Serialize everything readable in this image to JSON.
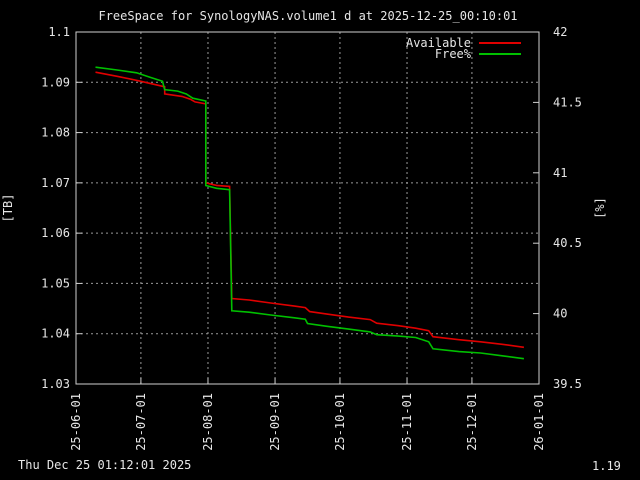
{
  "chart_data": {
    "type": "line",
    "title": "FreeSpace for SynologyNAS.volume1 d at 2025-12-25_00:10:01",
    "ylabel": "[TB]",
    "y2label": "[%]",
    "ylim": [
      1.03,
      1.1
    ],
    "y2lim": [
      39.5,
      42
    ],
    "yticks": [
      "1.03",
      "1.04",
      "1.05",
      "1.06",
      "1.07",
      "1.08",
      "1.09",
      "1.1"
    ],
    "y2ticks": [
      "39.5",
      "40",
      "40.5",
      "41",
      "41.5",
      "42"
    ],
    "xlim": [
      "2025-06-01",
      "2026-01-01"
    ],
    "xticks": [
      "25-06-01",
      "25-07-01",
      "25-08-01",
      "25-09-01",
      "25-10-01",
      "25-11-01",
      "25-12-01",
      "26-01-01"
    ],
    "grid": true,
    "legend_position": "top-right",
    "series": [
      {
        "name": "Available",
        "axis": "y",
        "color": "#e00000",
        "points": [
          [
            "2025-06-10",
            1.092
          ],
          [
            "2025-06-20",
            1.0912
          ],
          [
            "2025-06-30",
            1.0903
          ],
          [
            "2025-07-07",
            1.0896
          ],
          [
            "2025-07-12",
            1.0891
          ],
          [
            "2025-07-12",
            1.0877
          ],
          [
            "2025-07-20",
            1.0872
          ],
          [
            "2025-07-24",
            1.0866
          ],
          [
            "2025-07-26",
            1.0861
          ],
          [
            "2025-07-31",
            1.0857
          ],
          [
            "2025-07-31",
            1.07
          ],
          [
            "2025-08-05",
            1.0695
          ],
          [
            "2025-08-11",
            1.0693
          ],
          [
            "2025-08-12",
            1.047
          ],
          [
            "2025-08-20",
            1.0467
          ],
          [
            "2025-08-30",
            1.0461
          ],
          [
            "2025-09-10",
            1.0455
          ],
          [
            "2025-09-15",
            1.0452
          ],
          [
            "2025-09-17",
            1.0444
          ],
          [
            "2025-09-25",
            1.0439
          ],
          [
            "2025-10-05",
            1.0433
          ],
          [
            "2025-10-15",
            1.0428
          ],
          [
            "2025-10-18",
            1.0421
          ],
          [
            "2025-10-28",
            1.0416
          ],
          [
            "2025-11-05",
            1.0411
          ],
          [
            "2025-11-11",
            1.0406
          ],
          [
            "2025-11-13",
            1.0394
          ],
          [
            "2025-11-25",
            1.0388
          ],
          [
            "2025-12-05",
            1.0384
          ],
          [
            "2025-12-15",
            1.0379
          ],
          [
            "2025-12-25",
            1.0373
          ]
        ]
      },
      {
        "name": "Free%",
        "axis": "y2",
        "color": "#00c000",
        "points": [
          [
            "2025-06-10",
            41.75
          ],
          [
            "2025-06-20",
            41.73
          ],
          [
            "2025-06-29",
            41.71
          ],
          [
            "2025-07-05",
            41.68
          ],
          [
            "2025-07-11",
            41.65
          ],
          [
            "2025-07-12",
            41.59
          ],
          [
            "2025-07-18",
            41.58
          ],
          [
            "2025-07-22",
            41.56
          ],
          [
            "2025-07-25",
            41.53
          ],
          [
            "2025-07-31",
            41.51
          ],
          [
            "2025-07-31",
            40.91
          ],
          [
            "2025-08-05",
            40.89
          ],
          [
            "2025-08-11",
            40.88
          ],
          [
            "2025-08-12",
            40.02
          ],
          [
            "2025-08-20",
            40.01
          ],
          [
            "2025-08-30",
            39.99
          ],
          [
            "2025-09-10",
            39.97
          ],
          [
            "2025-09-15",
            39.96
          ],
          [
            "2025-09-16",
            39.93
          ],
          [
            "2025-09-25",
            39.91
          ],
          [
            "2025-10-05",
            39.89
          ],
          [
            "2025-10-15",
            39.87
          ],
          [
            "2025-10-18",
            39.85
          ],
          [
            "2025-10-28",
            39.84
          ],
          [
            "2025-11-05",
            39.83
          ],
          [
            "2025-11-11",
            39.8
          ],
          [
            "2025-11-13",
            39.75
          ],
          [
            "2025-11-25",
            39.73
          ],
          [
            "2025-12-05",
            39.72
          ],
          [
            "2025-12-15",
            39.7
          ],
          [
            "2025-12-25",
            39.68
          ]
        ]
      }
    ]
  },
  "footer": {
    "timestamp": "Thu Dec 25 01:12:01 2025",
    "version": "1.19"
  }
}
